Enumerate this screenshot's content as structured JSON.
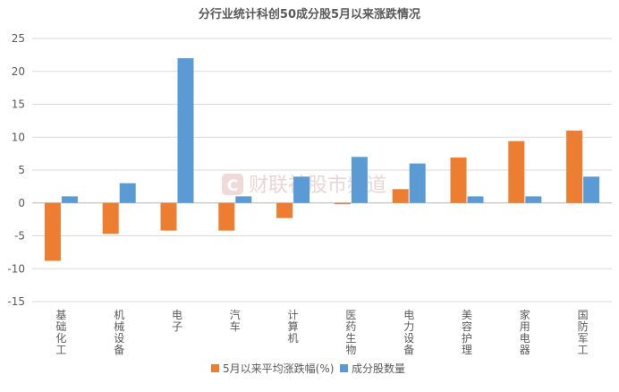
{
  "chart_data": {
    "type": "bar",
    "title": "分行业统计科创50成分股5月以来涨跌情况",
    "categories": [
      "基础化工",
      "机械设备",
      "电子",
      "汽车",
      "计算机",
      "医药生物",
      "电力设备",
      "美容护理",
      "家用电器",
      "国防军工"
    ],
    "series": [
      {
        "name": "5月以来平均涨跌幅(%)",
        "color": "#ed7d31",
        "values": [
          -8.8,
          -4.7,
          -4.2,
          -4.2,
          -2.3,
          -0.2,
          2.1,
          6.9,
          9.4,
          11.0
        ]
      },
      {
        "name": "成分股数量",
        "color": "#5b9bd5",
        "values": [
          1,
          3,
          22,
          1,
          4,
          7,
          6,
          1,
          1,
          4
        ]
      }
    ],
    "ylim": [
      -15,
      25
    ],
    "yticks": [
      -15,
      -10,
      -5,
      0,
      5,
      10,
      15,
      20,
      25
    ],
    "grid": true,
    "legend_position": "bottom",
    "watermark": "财联社股市频道"
  }
}
